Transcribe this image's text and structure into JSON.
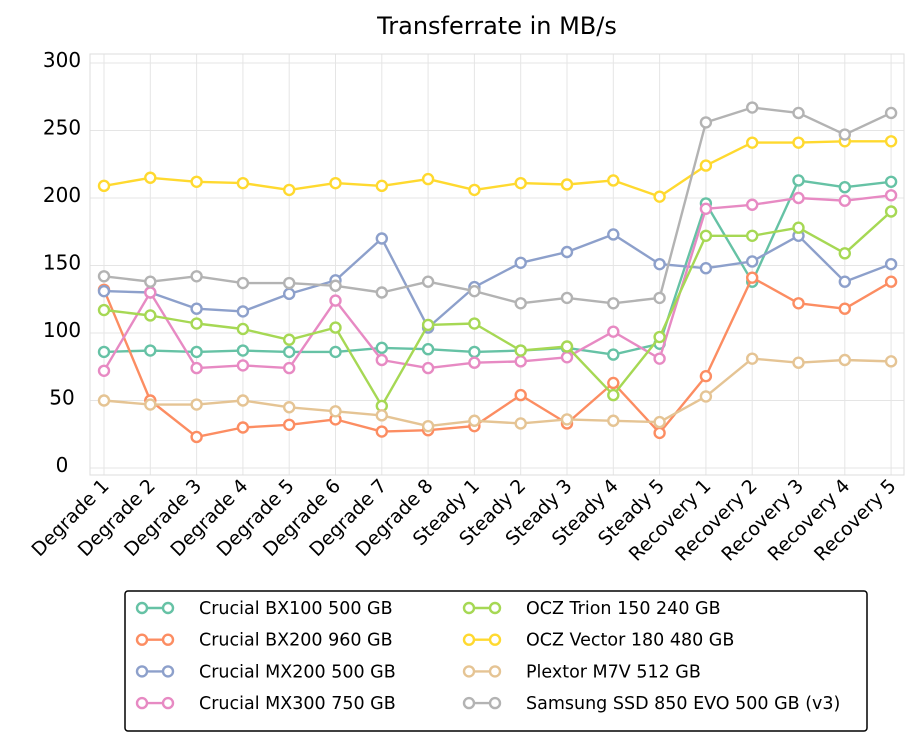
{
  "chart_data": {
    "type": "line",
    "title": "Transferrate in MB/s",
    "xlabel": "",
    "ylabel": "",
    "ylim": [
      0,
      300
    ],
    "yticks": [
      0,
      50,
      100,
      150,
      200,
      250,
      300
    ],
    "grid": true,
    "legend_position": "bottom",
    "categories": [
      "Degrade 1",
      "Degrade 2",
      "Degrade 3",
      "Degrade 4",
      "Degrade 5",
      "Degrade 6",
      "Degrade 7",
      "Degrade 8",
      "Steady 1",
      "Steady 2",
      "Steady 3",
      "Steady 4",
      "Steady 5",
      "Recovery 1",
      "Recovery 2",
      "Recovery 3",
      "Recovery 4",
      "Recovery 5"
    ],
    "series": [
      {
        "name": "Crucial BX100 500 GB",
        "color": "#66c2a5",
        "values": [
          86,
          87,
          86,
          87,
          86,
          86,
          89,
          88,
          86,
          87,
          89,
          84,
          92,
          196,
          138,
          213,
          208,
          212
        ]
      },
      {
        "name": "Crucial BX200 960 GB",
        "color": "#fc8d62",
        "values": [
          132,
          50,
          23,
          30,
          32,
          36,
          27,
          28,
          31,
          54,
          33,
          63,
          26,
          68,
          141,
          122,
          118,
          138
        ]
      },
      {
        "name": "Crucial MX200 500 GB",
        "color": "#8da0cb",
        "values": [
          131,
          130,
          118,
          116,
          129,
          139,
          170,
          104,
          134,
          152,
          160,
          173,
          151,
          148,
          153,
          172,
          138,
          151
        ]
      },
      {
        "name": "Crucial MX300 750 GB",
        "color": "#e78ac3",
        "values": [
          72,
          130,
          74,
          76,
          74,
          124,
          80,
          74,
          78,
          79,
          82,
          101,
          81,
          192,
          195,
          200,
          198,
          202
        ]
      },
      {
        "name": "OCZ Trion 150 240 GB",
        "color": "#a6d854",
        "values": [
          117,
          113,
          107,
          103,
          95,
          104,
          46,
          106,
          107,
          87,
          90,
          54,
          97,
          172,
          172,
          178,
          159,
          190
        ]
      },
      {
        "name": "OCZ Vector 180 480 GB",
        "color": "#ffd92f",
        "values": [
          209,
          215,
          212,
          211,
          206,
          211,
          209,
          214,
          206,
          211,
          210,
          213,
          201,
          224,
          241,
          241,
          242,
          242
        ]
      },
      {
        "name": "Plextor M7V 512 GB",
        "color": "#e5c494",
        "values": [
          50,
          47,
          47,
          50,
          45,
          42,
          39,
          31,
          35,
          33,
          36,
          35,
          34,
          53,
          81,
          78,
          80,
          79
        ]
      },
      {
        "name": "Samsung SSD 850 EVO 500 GB (v3)",
        "color": "#b3b3b3",
        "values": [
          142,
          138,
          142,
          137,
          137,
          135,
          130,
          138,
          131,
          122,
          126,
          122,
          126,
          256,
          267,
          263,
          247,
          263
        ]
      }
    ]
  }
}
